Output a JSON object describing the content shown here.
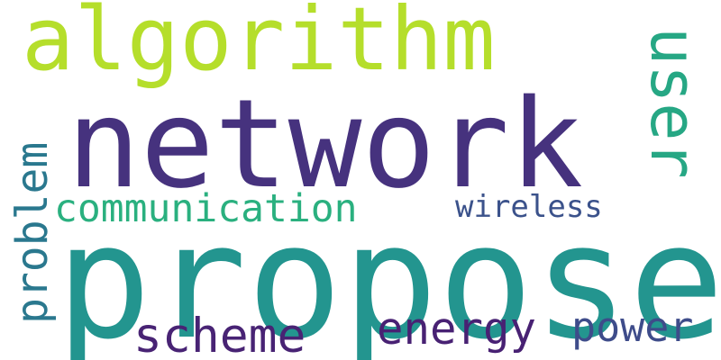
{
  "words": {
    "propose": {
      "text": "propose",
      "color": "#23958f"
    },
    "network": {
      "text": "network",
      "color": "#46327e"
    },
    "algorithm": {
      "text": "algorithm",
      "color": "#b5de2b"
    },
    "user": {
      "text": "user",
      "color": "#26a784"
    },
    "problem": {
      "text": "problem",
      "color": "#2a788e"
    },
    "communication": {
      "text": "communication",
      "color": "#2ab07f"
    },
    "wireless": {
      "text": "wireless",
      "color": "#3b528b"
    },
    "scheme": {
      "text": "scheme",
      "color": "#482374"
    },
    "energy": {
      "text": "energy",
      "color": "#482173"
    },
    "power": {
      "text": "power",
      "color": "#3e4c8a"
    }
  }
}
